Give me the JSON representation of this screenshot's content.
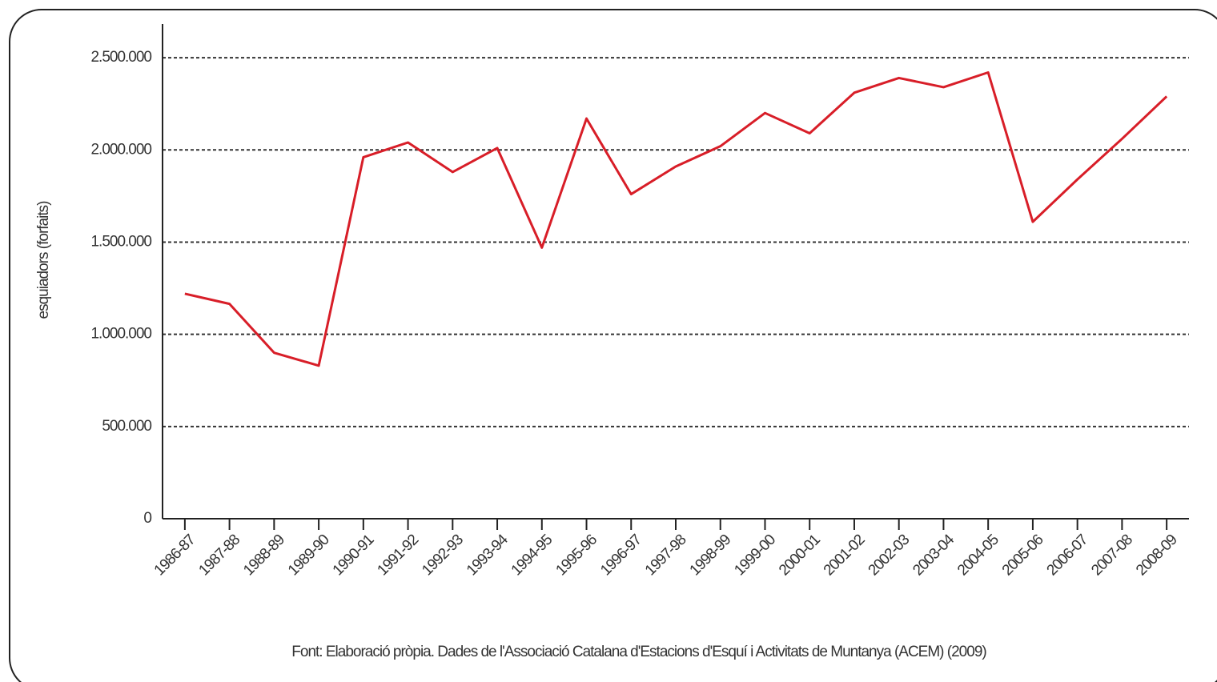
{
  "chart_data": {
    "type": "line",
    "ylabel": "esquiadors (forfaits)",
    "footer": "Font: Elaboració pròpia. Dades de l'Associació Catalana d'Estacions d'Esquí i Activitats de Muntanya (ACEM) (2009)",
    "categories": [
      "1986-87",
      "1987-88",
      "1988-89",
      "1989-90",
      "1990-91",
      "1991-92",
      "1992-93",
      "1993-94",
      "1994-95",
      "1995-96",
      "1996-97",
      "1997-98",
      "1998-99",
      "1999-00",
      "2000-01",
      "2001-02",
      "2002-03",
      "2003-04",
      "2004-05",
      "2005-06",
      "2006-07",
      "2007-08",
      "2008-09"
    ],
    "values": [
      1220000,
      1165000,
      900000,
      830000,
      1960000,
      2040000,
      1880000,
      2010000,
      1470000,
      2170000,
      1760000,
      1910000,
      2020000,
      2200000,
      2090000,
      2310000,
      2390000,
      2340000,
      2420000,
      1610000,
      1840000,
      2060000,
      2290000
    ],
    "color": "#d81e28",
    "ylim": [
      0,
      2700000
    ],
    "yticks": [
      0,
      {
        "value": 500000,
        "label": "500.000"
      },
      {
        "value": 1000000,
        "label": "1.000.000"
      },
      {
        "value": 1500000,
        "label": "1.500.000"
      },
      {
        "value": 2000000,
        "label": "2.000.000"
      },
      {
        "value": 2500000,
        "label": "2.500.000"
      }
    ],
    "grid": true
  }
}
